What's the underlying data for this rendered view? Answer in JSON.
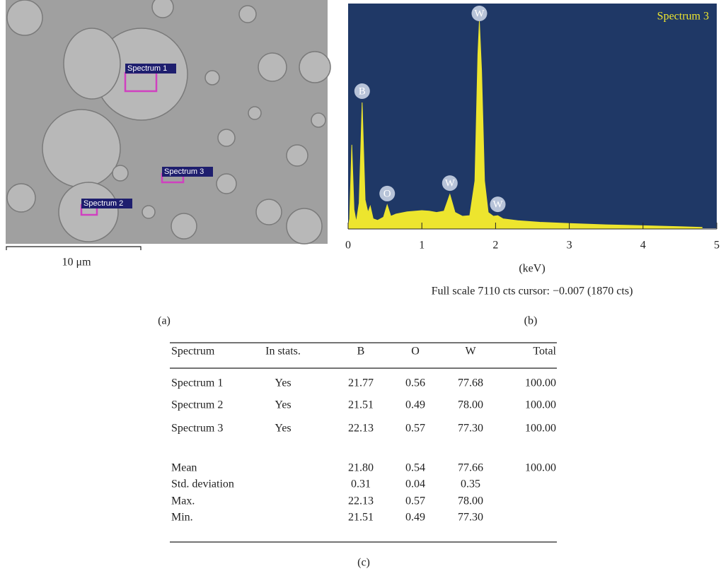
{
  "image": {
    "regions": [
      "Spectrum 1",
      "Spectrum 2",
      "Spectrum 3"
    ],
    "scale_bar": "10 μm",
    "panel": "(a)"
  },
  "chart_data": {
    "type": "area",
    "panel": "(b)",
    "title": "Spectrum 3",
    "x_label": "(keV)",
    "caption": "Full scale 7110 cts cursor: −0.007 (1870 cts)",
    "x": [
      0,
      0.02,
      0.05,
      0.08,
      0.11,
      0.15,
      0.19,
      0.23,
      0.27,
      0.3,
      0.34,
      0.4,
      0.48,
      0.53,
      0.58,
      0.65,
      0.8,
      1.0,
      1.1,
      1.2,
      1.3,
      1.38,
      1.45,
      1.55,
      1.65,
      1.72,
      1.76,
      1.78,
      1.81,
      1.85,
      1.9,
      1.97,
      2.03,
      2.1,
      2.3,
      2.6,
      3.0,
      3.5,
      4.0,
      4.5,
      4.8
    ],
    "values": [
      0,
      300,
      2640,
      600,
      200,
      800,
      3980,
      900,
      500,
      700,
      300,
      250,
      350,
      740,
      380,
      450,
      520,
      560,
      540,
      500,
      540,
      1070,
      500,
      380,
      400,
      1500,
      5500,
      6550,
      5000,
      1500,
      500,
      380,
      400,
      300,
      240,
      190,
      150,
      110,
      80,
      50,
      30
    ],
    "color": "#ede52e",
    "background": "#1f3866",
    "peak_labels": [
      {
        "text": "B",
        "x": 0.19
      },
      {
        "text": "O",
        "x": 0.53
      },
      {
        "text": "W",
        "x": 1.38
      },
      {
        "text": "W",
        "x": 1.78
      },
      {
        "text": "W",
        "x": 2.03
      }
    ],
    "xlim": [
      0,
      5
    ],
    "xticks": [
      0,
      1,
      2,
      3,
      4,
      5
    ],
    "ylim": [
      0,
      7110
    ]
  },
  "table": {
    "panel": "(c)",
    "columns": [
      "Spectrum",
      "In stats.",
      "B",
      "O",
      "W",
      "Total"
    ],
    "rows": [
      [
        "Spectrum 1",
        "Yes",
        "21.77",
        "0.56",
        "77.68",
        "100.00"
      ],
      [
        "Spectrum 2",
        "Yes",
        "21.51",
        "0.49",
        "78.00",
        "100.00"
      ],
      [
        "Spectrum 3",
        "Yes",
        "22.13",
        "0.57",
        "77.30",
        "100.00"
      ]
    ],
    "stats": [
      {
        "label": "Mean",
        "B": "21.80",
        "O": "0.54",
        "W": "77.66",
        "Total": "100.00"
      },
      {
        "label": "Std. deviation",
        "B": "0.31",
        "O": "0.04",
        "W": "0.35"
      },
      {
        "label": "Max.",
        "B": "22.13",
        "O": "0.57",
        "W": "78.00"
      },
      {
        "label": "Min.",
        "B": "21.51",
        "O": "0.49",
        "W": "77.30"
      }
    ]
  }
}
